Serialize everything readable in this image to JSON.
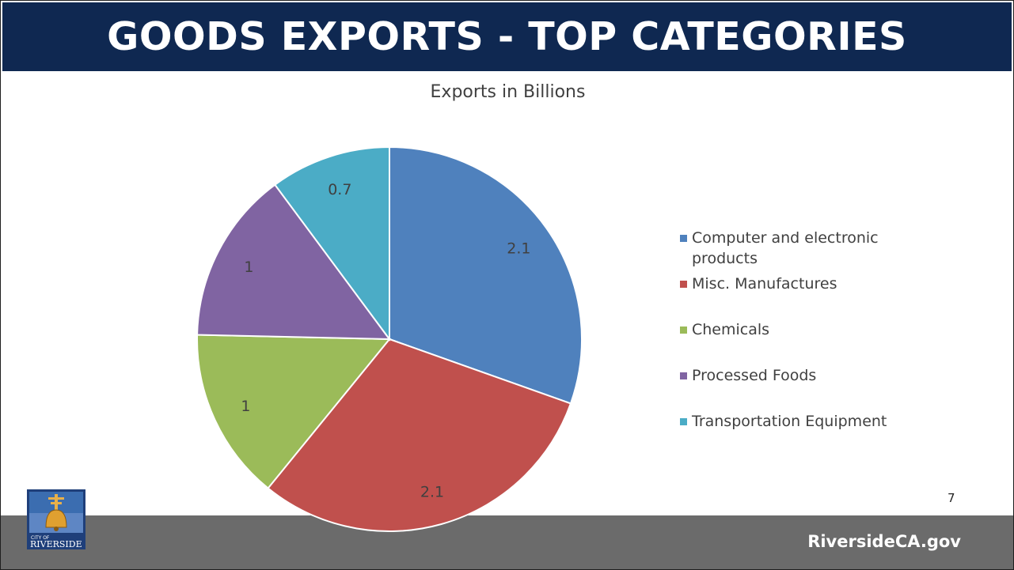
{
  "slide": {
    "title": "GOODS EXPORTS - TOP CATEGORIES",
    "footer_url": "RiversideCA.gov",
    "page_number": "7",
    "logo_text_top": "CITY OF",
    "logo_text_bottom": "RIVERSIDE"
  },
  "colors": {
    "title_bar": "#0f2851",
    "footer_bar": "#6b6b6b"
  },
  "chart_data": {
    "type": "pie",
    "title": "Exports in Billions",
    "categories": [
      "Computer and electronic products",
      "Misc. Manufactures",
      "Chemicals",
      "Processed Foods",
      "Transportation Equipment"
    ],
    "values": [
      2.1,
      2.1,
      1,
      1,
      0.7
    ],
    "colors": [
      "#4f81bd",
      "#c0504d",
      "#9bbb59",
      "#8064a2",
      "#4bacc6"
    ],
    "data_labels": [
      "2.1",
      "2.1",
      "1",
      "1",
      "0.7"
    ],
    "legend_position": "right",
    "start_angle": "top, clockwise"
  }
}
